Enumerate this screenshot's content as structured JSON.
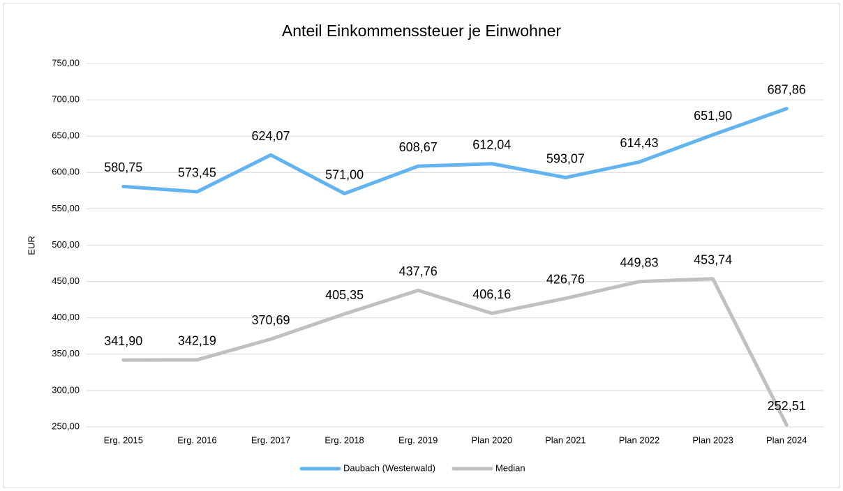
{
  "chart_data": {
    "type": "line",
    "title": "Anteil Einkommenssteuer je Einwohner",
    "y_label": "EUR",
    "categories": [
      "Erg. 2015",
      "Erg. 2016",
      "Erg. 2017",
      "Erg. 2018",
      "Erg. 2019",
      "Plan 2020",
      "Plan 2021",
      "Plan 2022",
      "Plan 2023",
      "Plan 2024"
    ],
    "series": [
      {
        "name": "Daubach (Westerwald)",
        "color": "#63b3ef",
        "values": [
          580.75,
          573.45,
          624.07,
          571.0,
          608.67,
          612.04,
          593.07,
          614.43,
          651.9,
          687.86
        ],
        "value_labels": [
          "580,75",
          "573,45",
          "624,07",
          "571,00",
          "608,67",
          "612,04",
          "593,07",
          "614,43",
          "651,90",
          "687,86"
        ]
      },
      {
        "name": "Median",
        "color": "#c0c0c0",
        "values": [
          341.9,
          342.19,
          370.69,
          405.35,
          437.76,
          406.16,
          426.76,
          449.83,
          453.74,
          252.51
        ],
        "value_labels": [
          "341,90",
          "342,19",
          "370,69",
          "405,35",
          "437,76",
          "406,16",
          "426,76",
          "449,83",
          "453,74",
          "252,51"
        ]
      }
    ],
    "ylim": [
      250,
      750
    ],
    "yticks": [
      {
        "value": 250,
        "label": "250,00"
      },
      {
        "value": 300,
        "label": "300,00"
      },
      {
        "value": 350,
        "label": "350,00"
      },
      {
        "value": 400,
        "label": "400,00"
      },
      {
        "value": 450,
        "label": "450,00"
      },
      {
        "value": 500,
        "label": "500,00"
      },
      {
        "value": 550,
        "label": "550,00"
      },
      {
        "value": 600,
        "label": "600,00"
      },
      {
        "value": 650,
        "label": "650,00"
      },
      {
        "value": 700,
        "label": "700,00"
      },
      {
        "value": 750,
        "label": "750,00"
      }
    ],
    "grid": true,
    "legend": "bottom"
  }
}
